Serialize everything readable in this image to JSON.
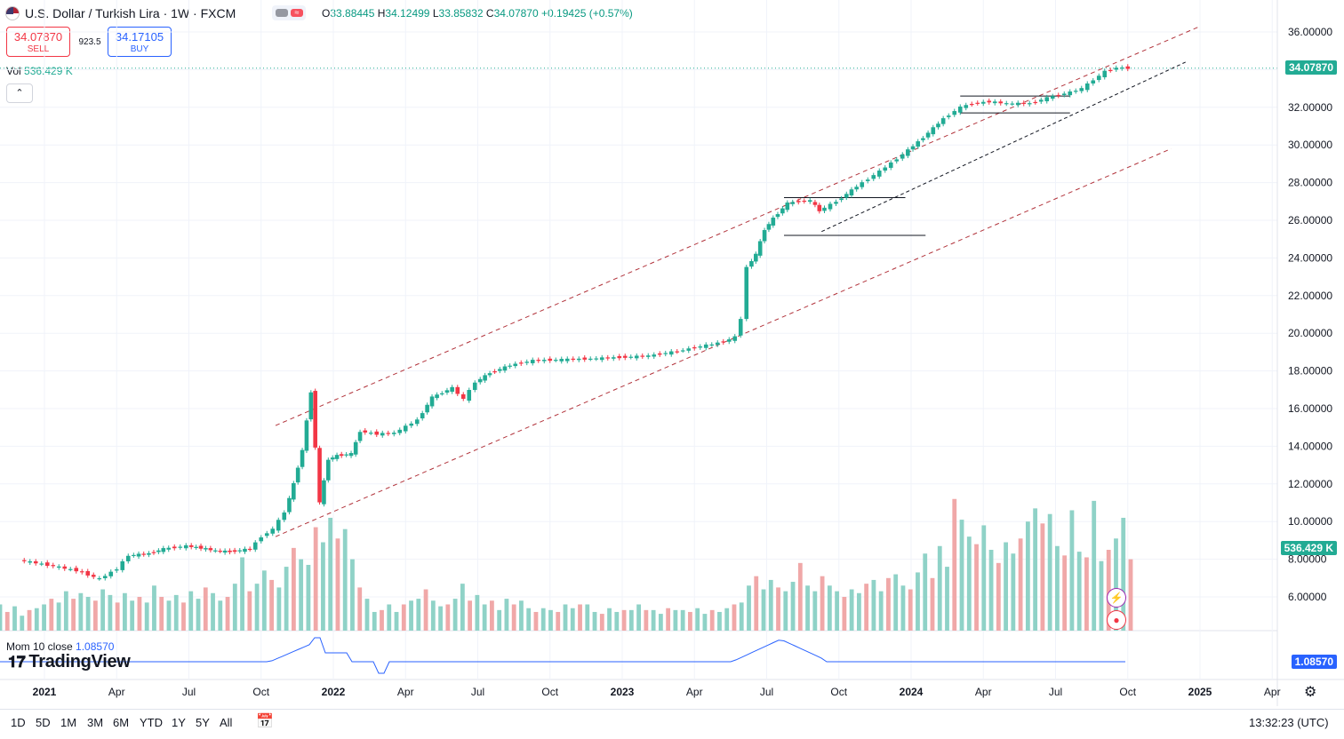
{
  "header": {
    "symbol": "U.S. Dollar / Turkish Lira · 1W · FXCM",
    "open_label": "O",
    "open": "33.88445",
    "high_label": "H",
    "high": "34.12499",
    "low_label": "L",
    "low": "33.85832",
    "close_label": "C",
    "close": "34.07870",
    "change": "+0.19425 (+0.57%)"
  },
  "trade": {
    "sell_price": "34.07870",
    "sell_label": "SELL",
    "buy_price": "34.17105",
    "buy_label": "BUY",
    "spread": "923.5"
  },
  "volume": {
    "label": "Vol",
    "value": "536.429 K"
  },
  "momentum": {
    "label": "Mom 10 close",
    "value": "1.08570"
  },
  "logo": "TradingView",
  "price_tags": {
    "last": "34.07870",
    "volume": "536.429 K",
    "momentum": "1.08570"
  },
  "timeframes": [
    "1D",
    "5D",
    "1M",
    "3M",
    "6M",
    "YTD",
    "1Y",
    "5Y",
    "All"
  ],
  "clock": "13:32:23 (UTC)",
  "colors": {
    "up": "#22ab94",
    "down": "#f23645",
    "vol_up": "#8fd2c7",
    "vol_down": "#f0a8a8",
    "momentum": "#2962ff",
    "channel": "#b2343c"
  },
  "icons": [
    "flag-icon",
    "collapse-chevron-icon",
    "calendar-icon",
    "gear-icon",
    "lightning-icon"
  ],
  "chart_data": {
    "type": "candlestick",
    "title": "U.S. Dollar / Turkish Lira · 1W · FXCM",
    "y_ticks": [
      "36.00000",
      "34.00000",
      "32.00000",
      "30.00000",
      "28.00000",
      "26.00000",
      "24.00000",
      "22.00000",
      "20.00000",
      "18.00000",
      "16.00000",
      "14.00000",
      "12.00000",
      "10.00000",
      "8.00000",
      "6.00000"
    ],
    "x_ticks": [
      "2021",
      "Apr",
      "Jul",
      "Oct",
      "2022",
      "Apr",
      "Jul",
      "Oct",
      "2023",
      "Apr",
      "Jul",
      "Oct",
      "2024",
      "Apr",
      "Jul",
      "Oct",
      "2025",
      "Apr"
    ],
    "ylim": [
      5.0,
      37.0
    ],
    "grid": true,
    "last_price": 34.0787,
    "price_path": [
      [
        2020.92,
        7.95
      ],
      [
        2021.0,
        7.75
      ],
      [
        2021.12,
        7.4
      ],
      [
        2021.2,
        6.95
      ],
      [
        2021.26,
        7.5
      ],
      [
        2021.3,
        8.2
      ],
      [
        2021.37,
        8.3
      ],
      [
        2021.42,
        8.55
      ],
      [
        2021.5,
        8.7
      ],
      [
        2021.55,
        8.6
      ],
      [
        2021.6,
        8.45
      ],
      [
        2021.65,
        8.4
      ],
      [
        2021.72,
        8.55
      ],
      [
        2021.76,
        9.2
      ],
      [
        2021.8,
        9.6
      ],
      [
        2021.84,
        10.5
      ],
      [
        2021.87,
        12.0
      ],
      [
        2021.9,
        13.8
      ],
      [
        2021.93,
        16.9
      ],
      [
        2021.96,
        11.0
      ],
      [
        2021.99,
        13.3
      ],
      [
        2022.02,
        13.5
      ],
      [
        2022.07,
        13.6
      ],
      [
        2022.1,
        14.8
      ],
      [
        2022.16,
        14.65
      ],
      [
        2022.22,
        14.7
      ],
      [
        2022.3,
        15.4
      ],
      [
        2022.35,
        16.6
      ],
      [
        2022.42,
        17.1
      ],
      [
        2022.46,
        16.5
      ],
      [
        2022.5,
        17.4
      ],
      [
        2022.55,
        17.9
      ],
      [
        2022.62,
        18.3
      ],
      [
        2022.7,
        18.55
      ],
      [
        2022.8,
        18.6
      ],
      [
        2022.9,
        18.65
      ],
      [
        2023.0,
        18.72
      ],
      [
        2023.1,
        18.8
      ],
      [
        2023.2,
        19.05
      ],
      [
        2023.28,
        19.3
      ],
      [
        2023.36,
        19.55
      ],
      [
        2023.4,
        19.8
      ],
      [
        2023.42,
        20.8
      ],
      [
        2023.44,
        23.5
      ],
      [
        2023.47,
        24.2
      ],
      [
        2023.5,
        25.5
      ],
      [
        2023.53,
        26.1
      ],
      [
        2023.58,
        26.9
      ],
      [
        2023.62,
        27.0
      ],
      [
        2023.66,
        27.05
      ],
      [
        2023.69,
        26.5
      ],
      [
        2023.75,
        27.0
      ],
      [
        2023.82,
        27.8
      ],
      [
        2023.9,
        28.6
      ],
      [
        2023.98,
        29.5
      ],
      [
        2024.05,
        30.4
      ],
      [
        2024.12,
        31.4
      ],
      [
        2024.18,
        32.0
      ],
      [
        2024.22,
        32.2
      ],
      [
        2024.28,
        32.3
      ],
      [
        2024.34,
        32.2
      ],
      [
        2024.42,
        32.2
      ],
      [
        2024.48,
        32.5
      ],
      [
        2024.56,
        32.8
      ],
      [
        2024.6,
        33.0
      ],
      [
        2024.64,
        33.45
      ],
      [
        2024.68,
        33.9
      ],
      [
        2024.72,
        34.1
      ],
      [
        2024.76,
        34.08
      ]
    ],
    "volume_bars": [
      5.6,
      5.2,
      5.5,
      5.0,
      5.3,
      5.4,
      5.6,
      5.9,
      5.7,
      6.3,
      5.9,
      6.2,
      6.0,
      5.8,
      6.4,
      6.1,
      5.7,
      6.2,
      5.8,
      6.0,
      5.7,
      6.6,
      6.0,
      5.8,
      6.1,
      5.7,
      6.3,
      5.9,
      6.5,
      6.2,
      5.8,
      6.0,
      6.7,
      8.1,
      6.3,
      6.7,
      7.4,
      6.9,
      6.5,
      7.6,
      8.6,
      8.0,
      7.7,
      9.7,
      8.9,
      10.2,
      9.1,
      9.6,
      8.0,
      6.5,
      5.9,
      5.2,
      5.3,
      5.6,
      5.2,
      5.6,
      5.8,
      5.9,
      6.4,
      5.8,
      5.5,
      5.6,
      5.9,
      6.7,
      5.8,
      6.1,
      5.6,
      5.8,
      5.3,
      5.9,
      5.6,
      5.8,
      5.4,
      5.2,
      5.4,
      5.3,
      5.2,
      5.6,
      5.4,
      5.6,
      5.6,
      5.2,
      5.1,
      5.4,
      5.2,
      5.3,
      5.3,
      5.6,
      5.3,
      5.3,
      5.1,
      5.4,
      5.3,
      5.3,
      5.2,
      5.4,
      5.1,
      5.3,
      5.2,
      5.4,
      5.6,
      5.7,
      6.6,
      7.1,
      6.4,
      6.9,
      6.5,
      6.3,
      6.8,
      7.8,
      6.6,
      6.3,
      7.1,
      6.6,
      6.3,
      6.0,
      6.4,
      6.2,
      6.7,
      6.9,
      6.3,
      7.0,
      7.2,
      6.6,
      6.4,
      7.3,
      8.3,
      7.0,
      8.7,
      7.6,
      11.2,
      10.1,
      9.2,
      8.8,
      9.8,
      8.5,
      7.8,
      8.9,
      8.3,
      9.1,
      10.0,
      10.7,
      9.9,
      10.4,
      8.7,
      8.2,
      10.6,
      8.4,
      8.1,
      11.1,
      7.9,
      8.5,
      9.1,
      10.2,
      8.0
    ],
    "momentum_value": 1.0857
  }
}
